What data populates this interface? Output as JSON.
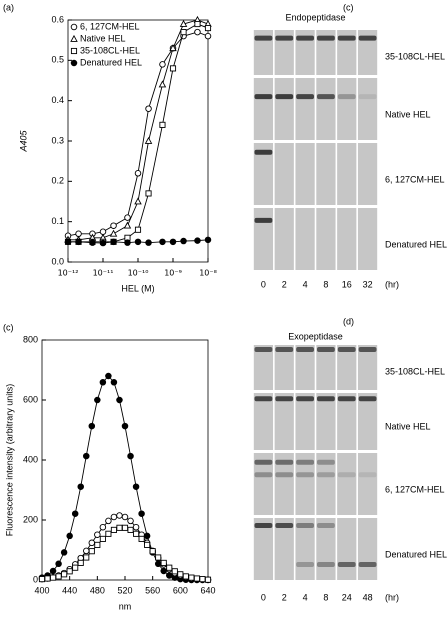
{
  "chart_data": [
    {
      "type": "line",
      "label": "(a)",
      "ylabel": "A405",
      "xlabel": "HEL (M)",
      "xscale": "log",
      "xlim": [
        1e-12,
        1e-08
      ],
      "ylim": [
        0,
        0.6
      ],
      "xticks": [
        {
          "value": 1e-12,
          "label": "10⁻¹²"
        },
        {
          "value": 1e-11,
          "label": "10⁻¹¹"
        },
        {
          "value": 1e-10,
          "label": "10⁻¹⁰"
        },
        {
          "value": 1e-09,
          "label": "10⁻⁹"
        },
        {
          "value": 1e-08,
          "label": "10⁻⁸"
        }
      ],
      "yticks": [
        {
          "value": 0,
          "label": "0.0"
        },
        0.1,
        0.2,
        0.3,
        0.4,
        0.5,
        0.6
      ],
      "legend": "upper left",
      "x": [
        1e-12,
        2e-12,
        5e-12,
        1e-11,
        2e-11,
        5e-11,
        1e-10,
        2e-10,
        5e-10,
        1e-09,
        2e-09,
        5e-09,
        1e-08
      ],
      "series": [
        {
          "name": "6, 127CM-HEL",
          "marker": "circle-open",
          "color": "#000000",
          "values": [
            0.065,
            0.07,
            0.07,
            0.075,
            0.09,
            0.11,
            0.22,
            0.38,
            0.49,
            0.53,
            0.56,
            0.57,
            0.56
          ]
        },
        {
          "name": "Native HEL",
          "marker": "triangle-open",
          "color": "#000000",
          "values": [
            0.055,
            0.055,
            0.06,
            0.06,
            0.07,
            0.09,
            0.15,
            0.3,
            0.44,
            0.53,
            0.59,
            0.6,
            0.59
          ]
        },
        {
          "name": "35-108CL-HEL",
          "marker": "square-open",
          "color": "#000000",
          "values": [
            0.05,
            0.05,
            0.05,
            0.05,
            0.05,
            0.06,
            0.08,
            0.17,
            0.34,
            0.48,
            0.57,
            0.59,
            0.58
          ]
        },
        {
          "name": "Denatured HEL",
          "marker": "circle-filled",
          "color": "#000000",
          "values": [
            0.05,
            0.05,
            0.048,
            0.047,
            0.05,
            0.048,
            0.05,
            0.048,
            0.05,
            0.05,
            0.052,
            0.053,
            0.055
          ]
        }
      ]
    },
    {
      "type": "line",
      "label": "(c)",
      "ylabel": "Fluorescence intensity (arbitrary units)",
      "xlabel": "nm",
      "xlim": [
        400,
        640
      ],
      "ylim": [
        0,
        800
      ],
      "xticks": [
        400,
        440,
        480,
        520,
        560,
        600,
        640
      ],
      "yticks": [
        0,
        200,
        400,
        600,
        800
      ],
      "x": [
        400,
        408,
        416,
        424,
        432,
        440,
        448,
        456,
        464,
        472,
        480,
        488,
        496,
        504,
        512,
        520,
        528,
        536,
        544,
        552,
        560,
        568,
        576,
        584,
        592,
        600,
        608,
        616,
        624,
        632,
        640
      ],
      "series": [
        {
          "marker": "circle-filled",
          "color": "#000000",
          "values": [
            8,
            15,
            30,
            54,
            92,
            147,
            221,
            311,
            413,
            513,
            600,
            659,
            680,
            659,
            600,
            513,
            413,
            311,
            221,
            147,
            92,
            54,
            30,
            15,
            8,
            3,
            1,
            0,
            0,
            0,
            0
          ]
        },
        {
          "marker": "circle-open",
          "color": "#000000",
          "values": [
            3,
            5,
            9,
            15,
            23,
            36,
            52,
            73,
            97,
            124,
            151,
            176,
            197,
            210,
            215,
            210,
            197,
            176,
            151,
            124,
            97,
            73,
            52,
            36,
            23,
            15,
            9,
            5,
            3,
            1,
            1
          ]
        },
        {
          "marker": "square-open",
          "color": "#000000",
          "values": [
            3,
            5,
            8,
            12,
            19,
            29,
            41,
            57,
            75,
            96,
            117,
            137,
            154,
            167,
            174,
            174,
            167,
            154,
            137,
            117,
            96,
            75,
            57,
            41,
            29,
            19,
            12,
            8,
            5,
            3,
            1
          ]
        }
      ]
    }
  ],
  "gels": [
    {
      "label": "(c)",
      "title": "Endopeptidase",
      "lanes": [
        0,
        2,
        4,
        8,
        16,
        32
      ],
      "unit": "(hr)",
      "rows": [
        "35-108CL-HEL",
        "Native HEL",
        "6, 127CM-HEL",
        "Denatured HEL"
      ]
    },
    {
      "label": "(d)",
      "title": "Exopeptidase",
      "lanes": [
        0,
        2,
        4,
        8,
        24,
        48
      ],
      "unit": "(hr)",
      "rows": [
        "35-108CL-HEL",
        "Native HEL",
        "6, 127CM-HEL",
        "Denatured HEL"
      ]
    }
  ]
}
